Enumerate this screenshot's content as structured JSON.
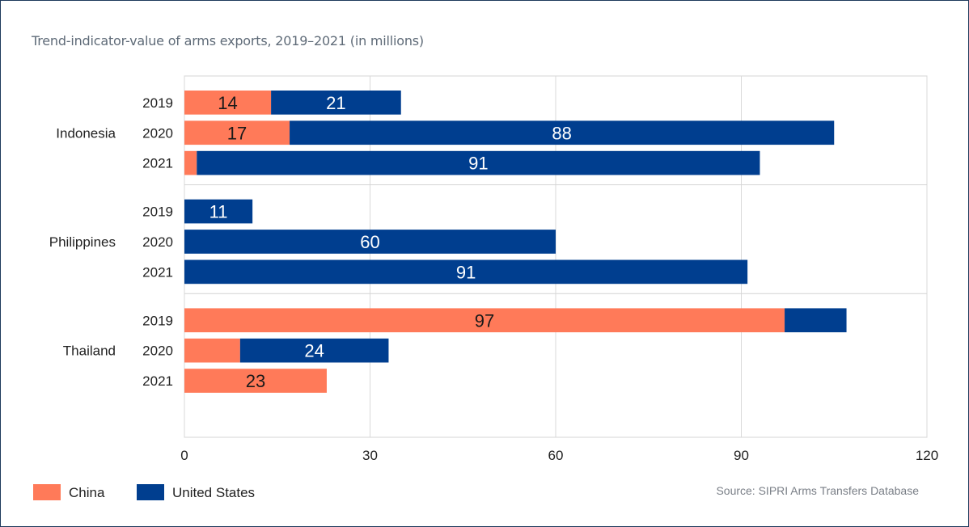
{
  "chart_data": {
    "type": "bar",
    "orientation": "horizontal",
    "stacked": true,
    "title": "Trend-indicator-value of arms exports, 2019–2021 (in millions)",
    "source": "Source: SIPRI Arms Transfers Database",
    "xlim": [
      0,
      120
    ],
    "x_ticks": [
      "0",
      "30",
      "60",
      "90",
      "120"
    ],
    "grid": true,
    "legend_position": "bottom-left",
    "colors": {
      "China": "#ff7a59",
      "United States": "#003e8f"
    },
    "series": [
      {
        "name": "China",
        "values": [
          14,
          17,
          2,
          0,
          0,
          0,
          97,
          9,
          23
        ]
      },
      {
        "name": "United States",
        "values": [
          21,
          88,
          91,
          11,
          60,
          91,
          10,
          24,
          0
        ]
      }
    ],
    "data_labels": {
      "China": [
        "14",
        "17",
        "",
        "",
        "",
        "",
        "97",
        "",
        "23"
      ],
      "United States": [
        "21",
        "88",
        "91",
        "11",
        "60",
        "91",
        "",
        "24",
        ""
      ]
    },
    "groups": [
      {
        "name": "Indonesia",
        "years": [
          "2019",
          "2020",
          "2021"
        ]
      },
      {
        "name": "Philippines",
        "years": [
          "2019",
          "2020",
          "2021"
        ]
      },
      {
        "name": "Thailand",
        "years": [
          "2019",
          "2020",
          "2021"
        ]
      }
    ]
  }
}
